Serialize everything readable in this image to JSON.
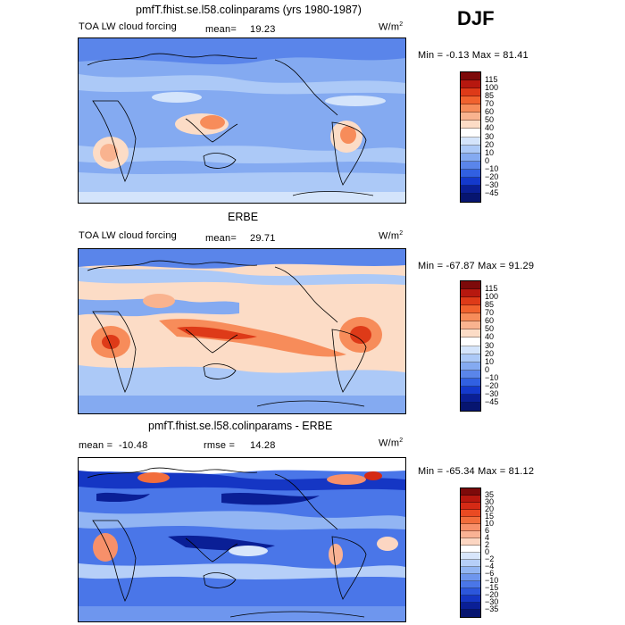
{
  "season": "DJF",
  "panels": [
    {
      "id": "model",
      "title": "pmfT.fhist.se.l58.colinparams (yrs 1980-1987)",
      "variable": "TOA LW cloud forcing",
      "stat_label": "mean=",
      "stat_value": "19.23",
      "units": "W/m",
      "units_exp": "2",
      "minmax": "Min =  -0.13 Max =  81.41",
      "levels": [
        "115",
        "100",
        "85",
        "70",
        "60",
        "50",
        "40",
        "30",
        "20",
        "10",
        "0",
        "−10",
        "−20",
        "−30",
        "−45"
      ],
      "colors": [
        "#7d0a0a",
        "#b7180f",
        "#de3a18",
        "#f1622e",
        "#f78c5a",
        "#f9b38f",
        "#fcdcc6",
        "#ffffff",
        "#d4e4fb",
        "#acc9f7",
        "#84aaf1",
        "#5a85ea",
        "#3160e2",
        "#1439cc",
        "#0a1f96",
        "#071570"
      ]
    },
    {
      "id": "obs",
      "title": "ERBE",
      "variable": "TOA LW cloud forcing",
      "stat_label": "mean=",
      "stat_value": "29.71",
      "units": "W/m",
      "units_exp": "2",
      "minmax": "Min = -67.87 Max =  91.29",
      "levels": [
        "115",
        "100",
        "85",
        "70",
        "60",
        "50",
        "40",
        "30",
        "20",
        "10",
        "0",
        "−10",
        "−20",
        "−30",
        "−45"
      ],
      "colors": [
        "#7d0a0a",
        "#b7180f",
        "#de3a18",
        "#f1622e",
        "#f78c5a",
        "#f9b38f",
        "#fcdcc6",
        "#ffffff",
        "#d4e4fb",
        "#acc9f7",
        "#84aaf1",
        "#5a85ea",
        "#3160e2",
        "#1439cc",
        "#0a1f96",
        "#071570"
      ]
    },
    {
      "id": "diff",
      "title": "pmfT.fhist.se.l58.colinparams - ERBE",
      "mean_label": "mean =",
      "mean_value": "-10.48",
      "rmse_label": "rmse =",
      "rmse_value": "14.28",
      "units": "W/m",
      "units_exp": "2",
      "minmax": "Min = -65.34 Max =  81.12",
      "levels": [
        "35",
        "30",
        "20",
        "15",
        "10",
        "6",
        "4",
        "2",
        "0",
        "−2",
        "−4",
        "−6",
        "−10",
        "−15",
        "−20",
        "−30",
        "−35"
      ],
      "colors": [
        "#7d0a0a",
        "#b7180f",
        "#d52a15",
        "#ea4a22",
        "#f26d3c",
        "#f7906a",
        "#f9b294",
        "#fcd6c2",
        "#ffffff",
        "#d8e6fb",
        "#b6cff8",
        "#92b5f3",
        "#6e96ee",
        "#4a76e8",
        "#2c56dc",
        "#1536c4",
        "#0a1f96",
        "#071570"
      ]
    }
  ]
}
